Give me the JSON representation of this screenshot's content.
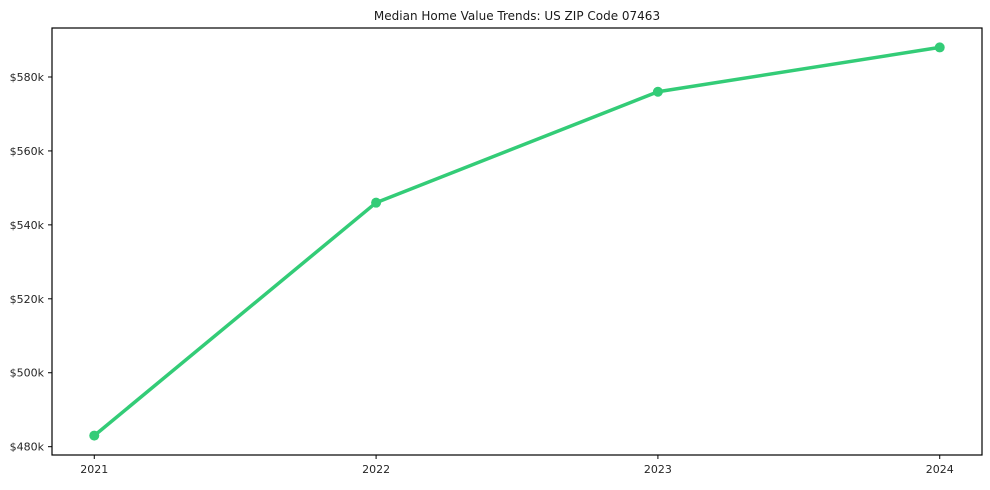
{
  "chart_data": {
    "type": "line",
    "title": "Median Home Value Trends: US ZIP Code 07463",
    "xlabel": "",
    "ylabel": "",
    "x": [
      2021,
      2022,
      2023,
      2024
    ],
    "series": [
      {
        "name": "Median Home Value",
        "values": [
          483000,
          546000,
          576000,
          588000
        ]
      }
    ],
    "x_ticks": [
      {
        "value": 2021,
        "label": "2021"
      },
      {
        "value": 2022,
        "label": "2022"
      },
      {
        "value": 2023,
        "label": "2023"
      },
      {
        "value": 2024,
        "label": "2024"
      }
    ],
    "y_ticks": [
      {
        "value": 480000,
        "label": "$480k"
      },
      {
        "value": 500000,
        "label": "$500k"
      },
      {
        "value": 520000,
        "label": "$520k"
      },
      {
        "value": 540000,
        "label": "$540k"
      },
      {
        "value": 560000,
        "label": "$560k"
      },
      {
        "value": 580000,
        "label": "$580k"
      }
    ],
    "xlim": [
      2020.85,
      2024.15
    ],
    "ylim": [
      477750,
      593250
    ],
    "grid": false,
    "legend": "none",
    "colors": {
      "line": "#33cc77",
      "marker": "#33cc77",
      "frame": "#000000",
      "text": "#262626",
      "background": "#ffffff"
    },
    "style": {
      "line_width": 3.5,
      "marker_radius": 5,
      "tick_length": 4
    }
  }
}
